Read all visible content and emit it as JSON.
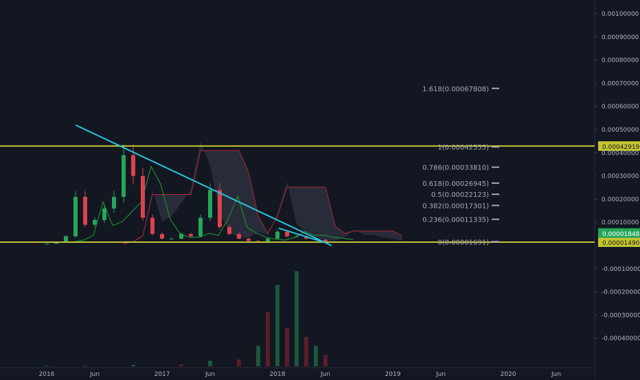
{
  "chart_data": {
    "type": "candlestick",
    "title": "",
    "x_axis_labels": [
      "2016",
      "Jun",
      "2017",
      "Jun",
      "2018",
      "Jun",
      "2019",
      "Jun",
      "2020",
      "Jun"
    ],
    "y_axis_ticks": [
      "0.00100000",
      "0.00090000",
      "0.00080000",
      "0.00070000",
      "0.00060000",
      "0.00050000",
      "0.00040000",
      "0.00030000",
      "0.00020000",
      "0.00010000",
      "-0.00010000",
      "-0.00020000",
      "-0.00030000",
      "-0.00040000"
    ],
    "y_range": [
      -0.00045,
      0.00103
    ],
    "horizontal_levels": [
      {
        "value": 0.00042919,
        "label": "0.00042919",
        "color": "#c4c431"
      },
      {
        "value": 1.49e-05,
        "label": "0.00001490",
        "color": "#c4c431"
      }
    ],
    "last_price": {
      "value": 1.848e-05,
      "label": "0.00001848",
      "color": "#26a65b"
    },
    "fibonacci_levels": [
      {
        "ratio": "1.618",
        "value": 0.00067808,
        "label": "1.618(0.00067808)"
      },
      {
        "ratio": "1",
        "value": 0.00042555,
        "label": "1(0.00042555)"
      },
      {
        "ratio": "0.786",
        "value": 0.0003381,
        "label": "0.786(0.00033810)"
      },
      {
        "ratio": "0.618",
        "value": 0.00026945,
        "label": "0.618(0.00026945)"
      },
      {
        "ratio": "0.5",
        "value": 0.00022123,
        "label": "0.5(0.00022123)"
      },
      {
        "ratio": "0.382",
        "value": 0.00017301,
        "label": "0.382(0.00017301)"
      },
      {
        "ratio": "0.236",
        "value": 0.00011335,
        "label": "0.236(0.00011335)"
      },
      {
        "ratio": "0",
        "value": 1.691e-05,
        "label": "0(0.00001691)"
      }
    ],
    "close_series": [
      {
        "x": "2016-01",
        "y": 8e-06
      },
      {
        "x": "2016-02",
        "y": 1.6e-05
      },
      {
        "x": "2016-03",
        "y": 4e-05
      },
      {
        "x": "2016-04",
        "y": 0.00021
      },
      {
        "x": "2016-05",
        "y": 9e-05
      },
      {
        "x": "2016-06",
        "y": 0.00011
      },
      {
        "x": "2016-07",
        "y": 0.00016
      },
      {
        "x": "2016-08",
        "y": 0.00021
      },
      {
        "x": "2016-09",
        "y": 0.00039
      },
      {
        "x": "2016-10",
        "y": 0.0003
      },
      {
        "x": "2016-11",
        "y": 0.00012
      },
      {
        "x": "2016-12",
        "y": 5e-05
      },
      {
        "x": "2017-01",
        "y": 3e-05
      },
      {
        "x": "2017-02",
        "y": 3e-05
      },
      {
        "x": "2017-03",
        "y": 5e-05
      },
      {
        "x": "2017-04",
        "y": 4e-05
      },
      {
        "x": "2017-05",
        "y": 0.00012
      },
      {
        "x": "2017-06",
        "y": 0.00024
      },
      {
        "x": "2017-07",
        "y": 8e-05
      },
      {
        "x": "2017-08",
        "y": 5e-05
      },
      {
        "x": "2017-09",
        "y": 3e-05
      },
      {
        "x": "2017-10",
        "y": 2e-05
      },
      {
        "x": "2017-11",
        "y": 1.6e-05
      },
      {
        "x": "2017-12",
        "y": 3e-05
      },
      {
        "x": "2018-01",
        "y": 6e-05
      },
      {
        "x": "2018-02",
        "y": 4e-05
      },
      {
        "x": "2018-03",
        "y": 4e-05
      },
      {
        "x": "2018-04",
        "y": 3e-05
      },
      {
        "x": "2018-05",
        "y": 2.5e-05
      },
      {
        "x": "2018-06",
        "y": 1.8e-05
      }
    ],
    "trendlines": [
      {
        "from": {
          "x": "2016-04",
          "y": 0.00052
        },
        "to": {
          "x": "2018-06-20",
          "y": 0.0
        }
      },
      {
        "from": {
          "x": "2018-01-05",
          "y": 7.5e-05
        },
        "to": {
          "x": "2018-05-25",
          "y": 1.5e-05
        }
      }
    ],
    "volume_series": [
      {
        "x": "2016-01",
        "v": 3e-06
      },
      {
        "x": "2016-05",
        "v": 4e-06
      },
      {
        "x": "2016-10",
        "v": 6e-06
      },
      {
        "x": "2017-03",
        "v": 8e-06
      },
      {
        "x": "2017-06",
        "v": 2.5e-05
      },
      {
        "x": "2017-09",
        "v": 3e-05
      },
      {
        "x": "2017-11",
        "v": 9e-05
      },
      {
        "x": "2017-12",
        "v": 0.00024
      },
      {
        "x": "2018-01",
        "v": 0.00036
      },
      {
        "x": "2018-02",
        "v": 0.00017
      },
      {
        "x": "2018-03",
        "v": 0.00042
      },
      {
        "x": "2018-04",
        "v": 0.00013
      },
      {
        "x": "2018-05",
        "v": 9e-05
      },
      {
        "x": "2018-06",
        "v": 5e-05
      }
    ],
    "grid": false,
    "legend": "none"
  }
}
